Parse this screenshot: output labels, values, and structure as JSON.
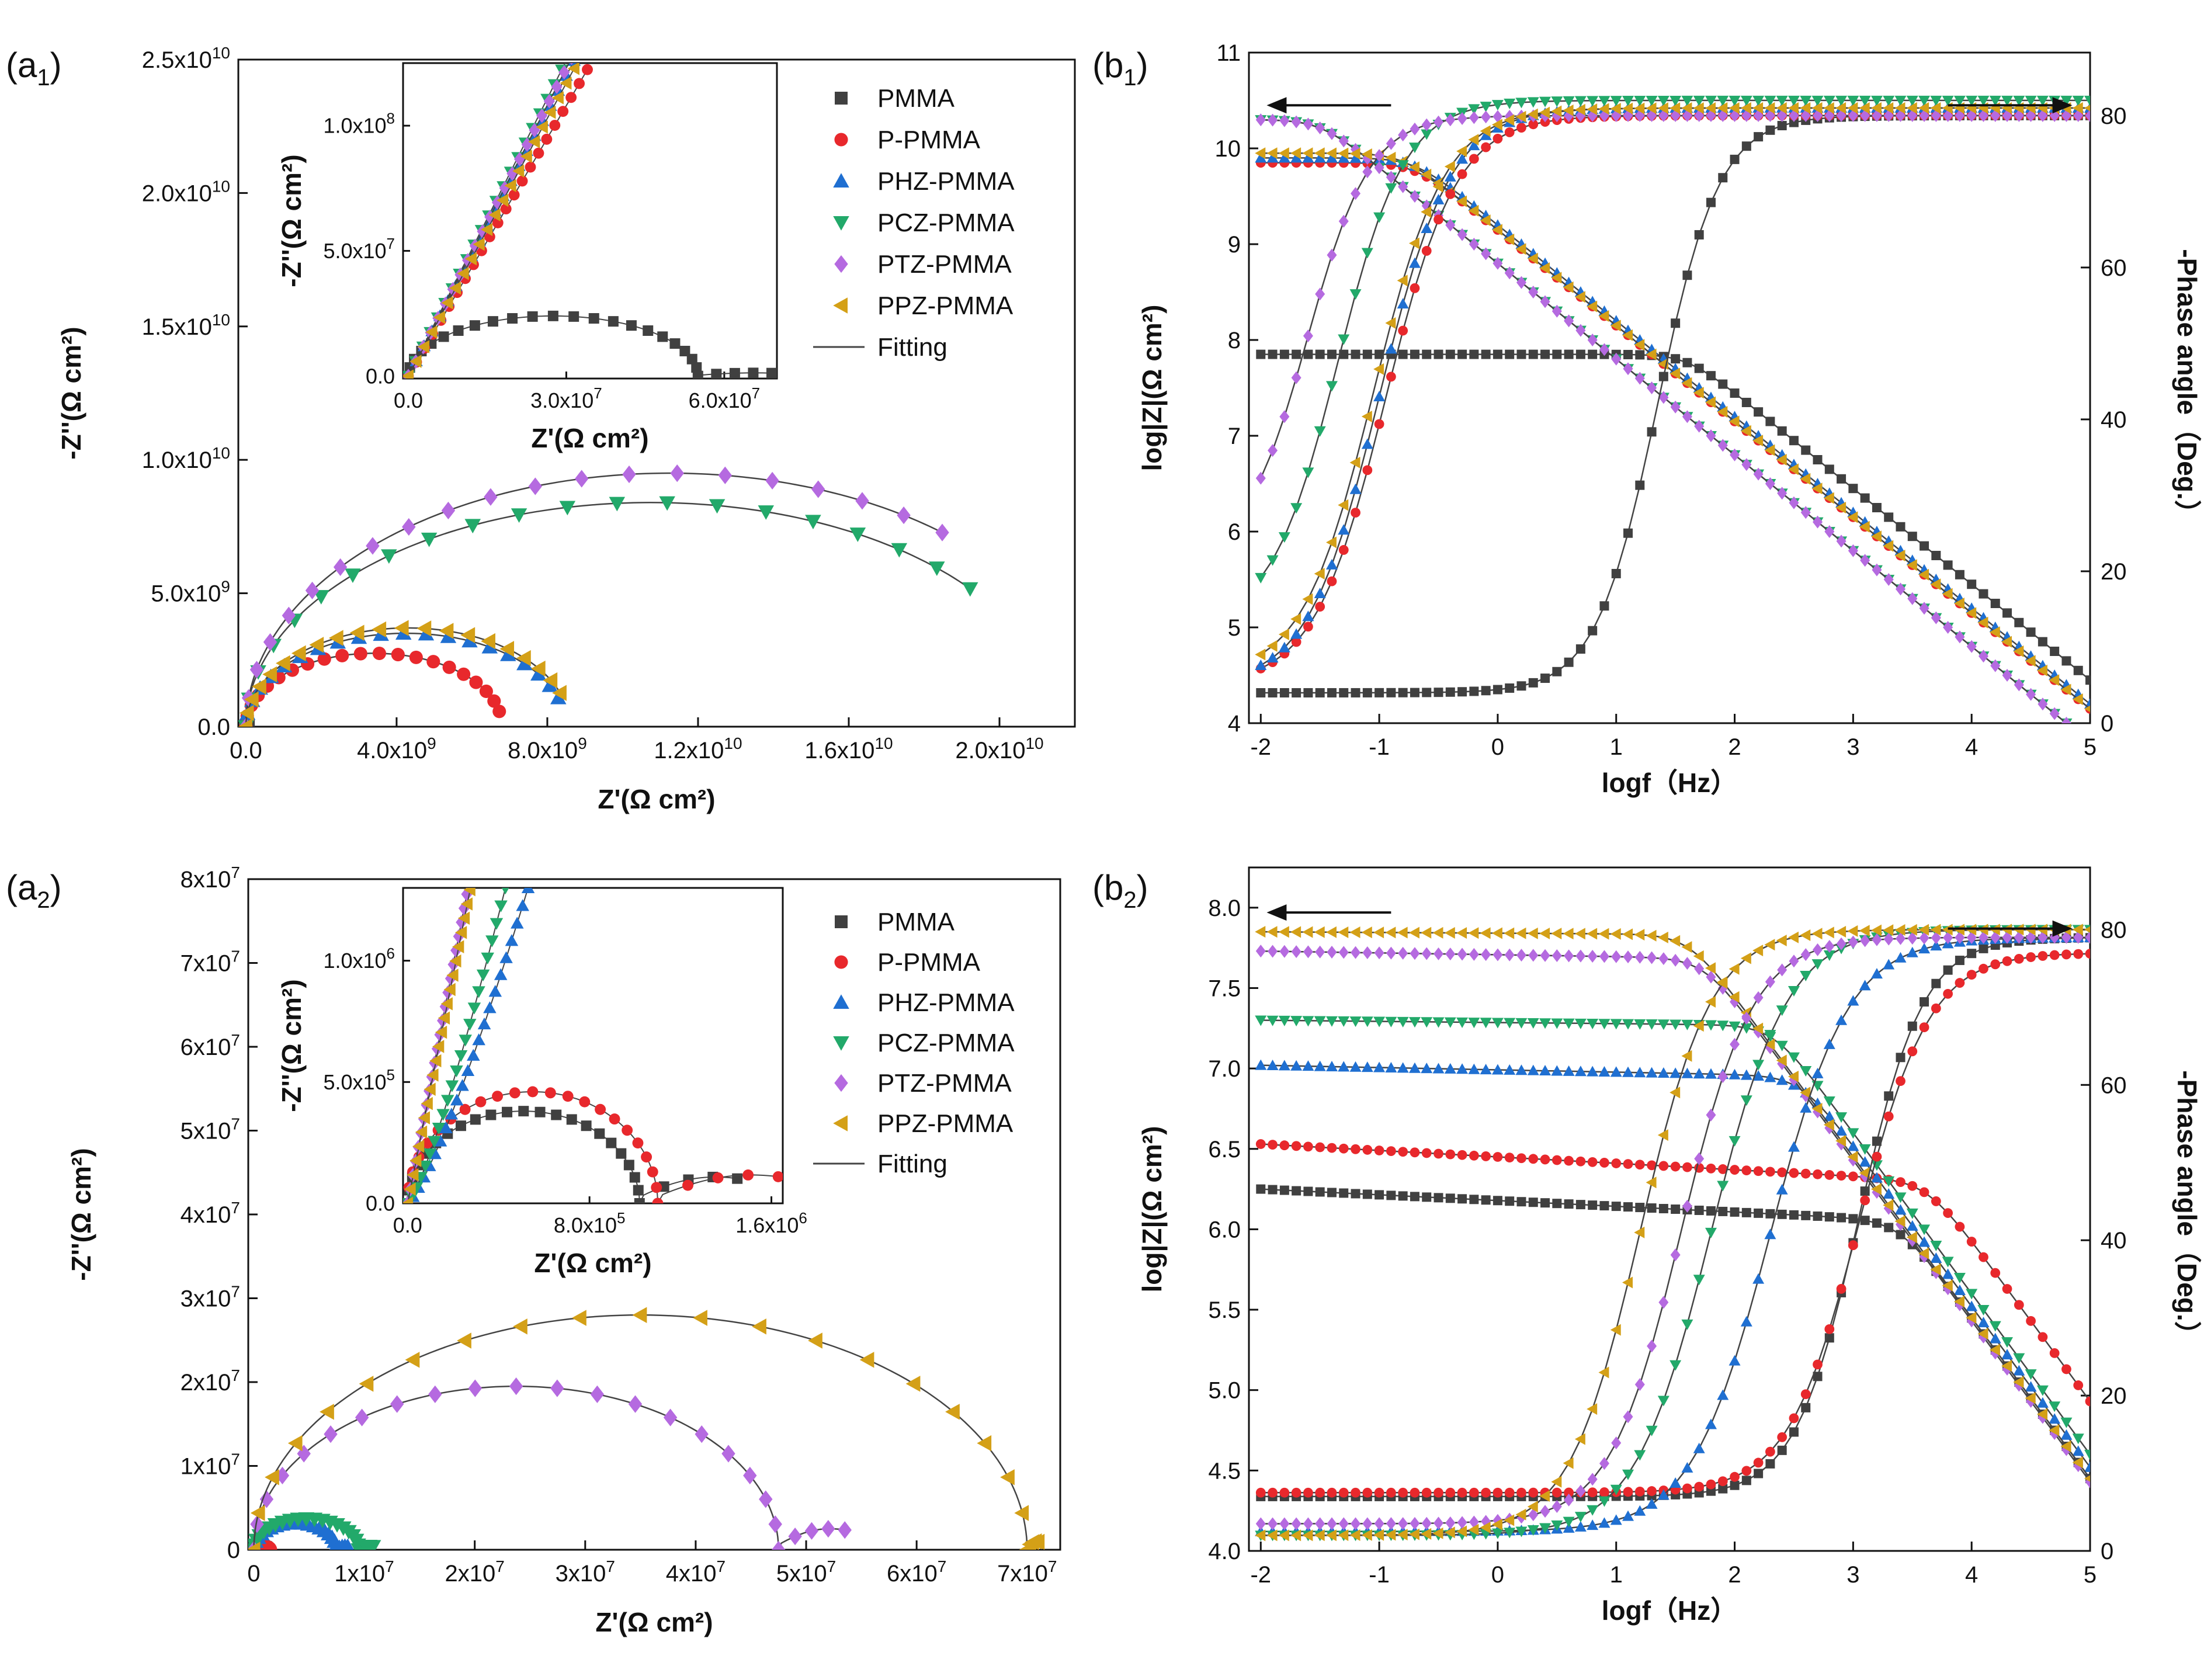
{
  "series_styles": [
    {
      "name": "PMMA",
      "color": "#404040",
      "marker": "square"
    },
    {
      "name": "P-PMMA",
      "color": "#e8282c",
      "marker": "circle"
    },
    {
      "name": "PHZ-PMMA",
      "color": "#1f6fd1",
      "marker": "triangle-up"
    },
    {
      "name": "PCZ-PMMA",
      "color": "#22a96a",
      "marker": "triangle-down"
    },
    {
      "name": "PTZ-PMMA",
      "color": "#b56ae0",
      "marker": "diamond"
    },
    {
      "name": "PPZ-PMMA",
      "color": "#d4a017",
      "marker": "triangle-left"
    }
  ],
  "fitting_label": "Fitting",
  "fitting_color": "#444444",
  "chart_data": [
    {
      "id": "a1",
      "type": "scatter",
      "panel_label": "a",
      "panel_sub": "1",
      "xlabel": "Z'(Ω cm²)",
      "ylabel": "-Z''(Ω cm²)",
      "xlim": [
        -200000000.0,
        22000000000.0
      ],
      "ylim": [
        0,
        25000000000.0
      ],
      "xticks": [
        0,
        4000000000.0,
        8000000000.0,
        12000000000.0,
        16000000000.0,
        20000000000.0
      ],
      "yticks": [
        0,
        5000000000.0,
        10000000000.0,
        15000000000.0,
        20000000000.0,
        25000000000.0
      ],
      "xtick_labels": [
        {
          "m": "0.0",
          "e": ""
        },
        {
          "m": "4.0x10",
          "e": "9"
        },
        {
          "m": "8.0x10",
          "e": "9"
        },
        {
          "m": "1.2x10",
          "e": "10"
        },
        {
          "m": "1.6x10",
          "e": "10"
        },
        {
          "m": "2.0x10",
          "e": "10"
        }
      ],
      "ytick_labels": [
        {
          "m": "0.0",
          "e": ""
        },
        {
          "m": "5.0x10",
          "e": "9"
        },
        {
          "m": "1.0x10",
          "e": "10"
        },
        {
          "m": "1.5x10",
          "e": "10"
        },
        {
          "m": "2.0x10",
          "e": "10"
        },
        {
          "m": "2.5x10",
          "e": "10"
        }
      ],
      "series": [
        {
          "name": "PMMA",
          "shape": "arc",
          "R": 65000000.0,
          "H": 24000000.0,
          "end_angle": 180
        },
        {
          "name": "P-PMMA",
          "shape": "arc",
          "R": 6800000000.0,
          "H": 2750000000.0,
          "end_angle": 168
        },
        {
          "name": "PHZ-PMMA",
          "shape": "arc",
          "R": 8500000000.0,
          "H": 3500000000.0,
          "end_angle": 162
        },
        {
          "name": "PCZ-PMMA",
          "shape": "arc",
          "R": 21500000000.0,
          "H": 8400000000.0,
          "end_angle": 142
        },
        {
          "name": "PTZ-PMMA",
          "shape": "arc",
          "R": 22500000000.0,
          "H": 9500000000.0,
          "end_angle": 130
        },
        {
          "name": "PPZ-PMMA",
          "shape": "arc",
          "R": 8600000000.0,
          "H": 3700000000.0,
          "end_angle": 160
        }
      ],
      "inset": {
        "xlim": [
          -1000000.0,
          70000000.0
        ],
        "ylim": [
          -1000000.0,
          125000000.0
        ],
        "xticks": [
          0,
          30000000.0,
          60000000.0
        ],
        "yticks": [
          0,
          50000000.0,
          100000000.0
        ],
        "xtick_labels": [
          {
            "m": "0.0",
            "e": ""
          },
          {
            "m": "3.0x10",
            "e": "7"
          },
          {
            "m": "6.0x10",
            "e": "7"
          }
        ],
        "ytick_labels": [
          {
            "m": "0.0",
            "e": ""
          },
          {
            "m": "5.0x10",
            "e": "7"
          },
          {
            "m": "1.0x10",
            "e": "8"
          }
        ],
        "xlabel": "Z'(Ω cm²)",
        "ylabel": "-Z''(Ω cm²)",
        "series": [
          {
            "name": "PMMA",
            "shape": "arc_tail",
            "R": 55000000.0,
            "H": 24000000.0,
            "tail_end": 69000000.0,
            "tail_y": 1500000.0
          },
          {
            "name": "P-PMMA",
            "shape": "line",
            "slope": 3.6,
            "xmax": 34000000.0
          },
          {
            "name": "PHZ-PMMA",
            "shape": "line",
            "slope": 4.0,
            "xmax": 33000000.0
          },
          {
            "name": "PCZ-PMMA",
            "shape": "line",
            "slope": 4.2,
            "xmax": 30500000.0
          },
          {
            "name": "PTZ-PMMA",
            "shape": "line",
            "slope": 4.1,
            "xmax": 31000000.0
          },
          {
            "name": "PPZ-PMMA",
            "shape": "line",
            "slope": 3.9,
            "xmax": 33000000.0
          }
        ]
      }
    },
    {
      "id": "b1",
      "type": "line",
      "panel_label": "b",
      "panel_sub": "1",
      "xlabel": "logf（Hz）",
      "ylabel": "log|Z|(Ω cm²)",
      "y2label": "-Phase angle（Deg.）",
      "xlim": [
        -2.1,
        5
      ],
      "ylim": [
        4,
        11
      ],
      "y2lim": [
        0,
        88.3
      ],
      "xticks": [
        -2,
        -1,
        0,
        1,
        2,
        3,
        4,
        5
      ],
      "yticks": [
        4,
        5,
        6,
        7,
        8,
        9,
        10,
        11
      ],
      "y2ticks": [
        0,
        20,
        40,
        60,
        80
      ],
      "arrows": [
        {
          "direction": "left",
          "x0": -0.9,
          "x1": -1.95,
          "y": 10.45
        },
        {
          "direction": "right",
          "x0": 3.8,
          "x1": 4.85,
          "y": 10.45
        }
      ],
      "impedance": [
        {
          "name": "PMMA",
          "plateau": 7.85,
          "fc": 1.6,
          "slope_start": "below"
        },
        {
          "name": "P-PMMA",
          "plateau": 9.85,
          "fc": -0.7
        },
        {
          "name": "PHZ-PMMA",
          "plateau": 9.9,
          "fc": -0.7
        },
        {
          "name": "PCZ-PMMA",
          "plateau": 10.3,
          "fc": -1.5
        },
        {
          "name": "PTZ-PMMA",
          "plateau": 10.3,
          "fc": -1.5
        },
        {
          "name": "PPZ-PMMA",
          "plateau": 9.95,
          "fc": -0.8
        }
      ],
      "phase": [
        {
          "name": "PMMA",
          "low": 4,
          "high": 80,
          "center": 1.35,
          "width": 0.26
        },
        {
          "name": "P-PMMA",
          "low": 5,
          "high": 80,
          "center": -0.95,
          "width": 0.3
        },
        {
          "name": "PHZ-PMMA",
          "low": 5,
          "high": 81,
          "center": -1.0,
          "width": 0.3
        },
        {
          "name": "PCZ-PMMA",
          "low": 13,
          "high": 82,
          "center": -1.35,
          "width": 0.28
        },
        {
          "name": "PTZ-PMMA",
          "low": 22,
          "high": 80,
          "center": -1.6,
          "width": 0.26
        },
        {
          "name": "PPZ-PMMA",
          "low": 6,
          "high": 81,
          "center": -1.05,
          "width": 0.3
        }
      ]
    },
    {
      "id": "a2",
      "type": "scatter",
      "panel_label": "a",
      "panel_sub": "2",
      "xlabel": "Z'(Ω cm²)",
      "ylabel": "-Z''(Ω cm²)",
      "xlim": [
        -500000.0,
        73000000.0
      ],
      "ylim": [
        0,
        80000000.0
      ],
      "xticks": [
        0,
        10000000.0,
        20000000.0,
        30000000.0,
        40000000.0,
        50000000.0,
        60000000.0,
        70000000.0
      ],
      "yticks": [
        0,
        10000000.0,
        20000000.0,
        30000000.0,
        40000000.0,
        50000000.0,
        60000000.0,
        70000000.0,
        80000000.0
      ],
      "xtick_labels": [
        {
          "m": "0",
          "e": ""
        },
        {
          "m": "1x10",
          "e": "7"
        },
        {
          "m": "2x10",
          "e": "7"
        },
        {
          "m": "3x10",
          "e": "7"
        },
        {
          "m": "4x10",
          "e": "7"
        },
        {
          "m": "5x10",
          "e": "7"
        },
        {
          "m": "6x10",
          "e": "7"
        },
        {
          "m": "7x10",
          "e": "7"
        }
      ],
      "ytick_labels": [
        {
          "m": "0",
          "e": ""
        },
        {
          "m": "1x10",
          "e": "7"
        },
        {
          "m": "2x10",
          "e": "7"
        },
        {
          "m": "3x10",
          "e": "7"
        },
        {
          "m": "4x10",
          "e": "7"
        },
        {
          "m": "5x10",
          "e": "7"
        },
        {
          "m": "6x10",
          "e": "7"
        },
        {
          "m": "7x10",
          "e": "7"
        },
        {
          "m": "8x10",
          "e": "7"
        }
      ],
      "series": [
        {
          "name": "PMMA",
          "shape": "arc",
          "R": 1200000.0,
          "H": 400000.0,
          "end_angle": 180
        },
        {
          "name": "P-PMMA",
          "shape": "arc",
          "R": 1500000.0,
          "H": 450000.0,
          "end_angle": 180
        },
        {
          "name": "PHZ-PMMA",
          "shape": "arc_tail",
          "R": 7500000.0,
          "H": 3200000.0,
          "tail_end": 8500000.0,
          "tail_y": 500000.0
        },
        {
          "name": "PCZ-PMMA",
          "shape": "arc_tail",
          "R": 9500000.0,
          "H": 3700000.0,
          "tail_end": 10800000.0,
          "tail_y": 500000.0
        },
        {
          "name": "PTZ-PMMA",
          "shape": "arc_tail",
          "R": 47500000.0,
          "H": 19500000.0,
          "tail_end": 53500000.0,
          "tail_y": 3000000.0
        },
        {
          "name": "PPZ-PMMA",
          "shape": "arc_tail",
          "R": 70000000.0,
          "H": 28000000.0,
          "tail_end": 71000000.0,
          "tail_y": 1200000.0
        }
      ],
      "inset": {
        "xlim": [
          -20000.0,
          1650000.0
        ],
        "ylim": [
          0,
          1300000.0
        ],
        "xticks": [
          0,
          800000.0,
          1600000.0
        ],
        "yticks": [
          0,
          500000.0,
          1000000.0
        ],
        "xtick_labels": [
          {
            "m": "0.0",
            "e": ""
          },
          {
            "m": "8.0x10",
            "e": "5"
          },
          {
            "m": "1.6x10",
            "e": "6"
          }
        ],
        "ytick_labels": [
          {
            "m": "0.0",
            "e": ""
          },
          {
            "m": "5.0x10",
            "e": "5"
          },
          {
            "m": "1.0x10",
            "e": "6"
          }
        ],
        "xlabel": "Z'(Ω cm²)",
        "ylabel": "-Z''(Ω cm²)",
        "series": [
          {
            "name": "PMMA",
            "shape": "arc_tail",
            "R": 1020000.0,
            "H": 380000.0,
            "tail_end": 1450000.0,
            "tail_y": 130000.0
          },
          {
            "name": "P-PMMA",
            "shape": "arc_tail",
            "R": 1100000.0,
            "H": 460000.0,
            "tail_end": 1630000.0,
            "tail_y": 140000.0
          },
          {
            "name": "PHZ-PMMA",
            "shape": "curve",
            "xmax": 530000.0,
            "ymax": 1300000.0
          },
          {
            "name": "PCZ-PMMA",
            "shape": "curve",
            "xmax": 430000.0,
            "ymax": 1300000.0
          },
          {
            "name": "PTZ-PMMA",
            "shape": "line",
            "slope": 4.9,
            "xmax": 260000.0
          },
          {
            "name": "PPZ-PMMA",
            "shape": "line",
            "slope": 4.7,
            "xmax": 275000.0
          }
        ]
      }
    },
    {
      "id": "b2",
      "type": "line",
      "panel_label": "b",
      "panel_sub": "2",
      "xlabel": "logf（Hz）",
      "ylabel": "log|Z|(Ω cm²)",
      "y2label": "-Phase angle（Deg.）",
      "xlim": [
        -2.1,
        5
      ],
      "ylim": [
        4,
        8.25
      ],
      "y2lim": [
        0,
        88
      ],
      "xticks": [
        -2,
        -1,
        0,
        1,
        2,
        3,
        4,
        5
      ],
      "yticks": [
        4.0,
        4.5,
        5.0,
        5.5,
        6.0,
        6.5,
        7.0,
        7.5,
        8.0
      ],
      "y2ticks": [
        0,
        20,
        40,
        60,
        80
      ],
      "ytick_labels": [
        "4.0",
        "4.5",
        "5.0",
        "5.5",
        "6.0",
        "6.5",
        "7.0",
        "7.5",
        "8.0"
      ],
      "arrows": [
        {
          "direction": "left",
          "x0": -0.9,
          "x1": -1.95,
          "y": 7.97
        },
        {
          "direction": "right",
          "x0": 3.8,
          "x1": 4.85,
          "y": 7.87
        }
      ],
      "impedance": [
        {
          "name": "PMMA",
          "plateau": 6.25,
          "fc": 3.2,
          "drift": 0.25
        },
        {
          "name": "P-PMMA",
          "plateau": 6.53,
          "fc": 3.4,
          "drift": 0.28
        },
        {
          "name": "PHZ-PMMA",
          "plateau": 7.02,
          "fc": 2.5,
          "drift": 0.1
        },
        {
          "name": "PCZ-PMMA",
          "plateau": 7.3,
          "fc": 2.3,
          "drift": 0.05
        },
        {
          "name": "PTZ-PMMA",
          "plateau": 7.73,
          "fc": 1.7,
          "drift": 0.08
        },
        {
          "name": "PPZ-PMMA",
          "plateau": 7.85,
          "fc": 1.6,
          "drift": 0.03
        }
      ],
      "phase": [
        {
          "name": "PMMA",
          "low": 7,
          "high": 79,
          "center": 3.05,
          "width": 0.27
        },
        {
          "name": "P-PMMA",
          "low": 7.5,
          "high": 77,
          "center": 3.05,
          "width": 0.3
        },
        {
          "name": "PHZ-PMMA",
          "low": 2.5,
          "high": 79,
          "center": 2.3,
          "width": 0.33
        },
        {
          "name": "PCZ-PMMA",
          "low": 2,
          "high": 80,
          "center": 1.8,
          "width": 0.32
        },
        {
          "name": "PTZ-PMMA",
          "low": 3.5,
          "high": 79,
          "center": 1.55,
          "width": 0.3
        },
        {
          "name": "PPZ-PMMA",
          "low": 2,
          "high": 80,
          "center": 1.2,
          "width": 0.3
        }
      ]
    }
  ]
}
